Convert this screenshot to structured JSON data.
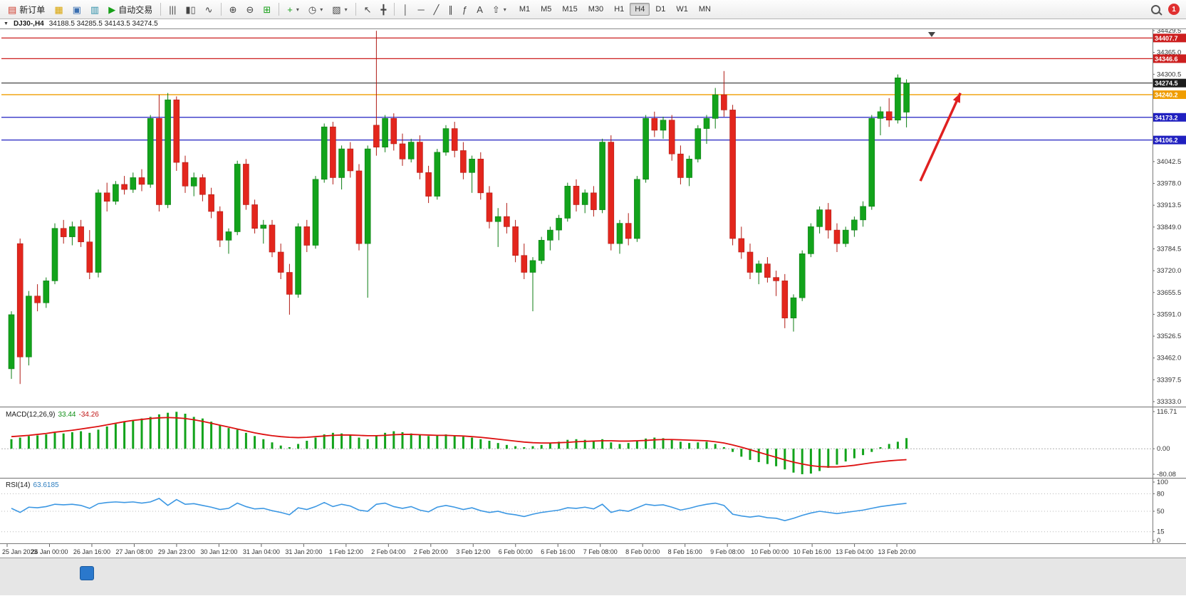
{
  "toolbar": {
    "new_order": "新订单",
    "auto_trading": "自动交易",
    "timeframes": [
      "M1",
      "M5",
      "M15",
      "M30",
      "H1",
      "H4",
      "D1",
      "W1",
      "MN"
    ],
    "active_timeframe": "H4",
    "notification_count": "1",
    "icons": {
      "new_order": "▤",
      "chart_shortcut": "▦",
      "profile": "▣",
      "market_watch": "▥",
      "play": "▶",
      "bar_chart": "|||",
      "candlestick": "▮▯",
      "line_chart": "∿",
      "zoom_in": "⊕",
      "zoom_out": "⊖",
      "tile_windows": "⊞",
      "indicators_add": "+",
      "clock": "◷",
      "template": "▧",
      "cursor": "↖",
      "crosshair": "╋",
      "vline": "│",
      "hline": "─",
      "trendline": "╱",
      "channel": "∥",
      "fibonacci": "ƒ",
      "text_tool": "A",
      "arrow_tool": "⇧",
      "caret": "▾",
      "header_marker": "▼"
    }
  },
  "chart_header": {
    "symbol": "DJ30-,H4",
    "ohlc_text": "34188.5 34285.5 34143.5 34274.5"
  },
  "panes": {
    "macd_name": "MACD(12,26,9)",
    "macd_main": "33.44",
    "macd_signal": "-34.26",
    "rsi_name": "RSI(14)",
    "rsi_value": "63.6185"
  },
  "chart_data": {
    "type": "candlestick",
    "symbol": "DJ30-",
    "timeframe": "H4",
    "current_ohlc": {
      "open": 34188.5,
      "high": 34285.5,
      "low": 34143.5,
      "close": 34274.5
    },
    "price_axis": {
      "min": 33322.5,
      "max": 34429.5,
      "labels": [
        "34429.5",
        "34365.0",
        "34300.5",
        "34236.0",
        "34171.5",
        "34107.0",
        "34042.5",
        "33978.0",
        "33913.5",
        "33849.0",
        "33784.5",
        "33720.0",
        "33655.5",
        "33591.0",
        "33526.5",
        "33462.0",
        "33397.5",
        "33333.0"
      ],
      "label_values": [
        34429.5,
        34365.0,
        34300.5,
        34236.0,
        34171.5,
        34107.0,
        34042.5,
        33978.0,
        33913.5,
        33849.0,
        33784.5,
        33720.0,
        33655.5,
        33591.0,
        33526.5,
        33462.0,
        33397.5,
        33333.0
      ]
    },
    "hlines": [
      {
        "price": 34407.7,
        "label": "34407.7",
        "color": "#cc1f1f",
        "type": "resistance"
      },
      {
        "price": 34346.6,
        "label": "34346.6",
        "color": "#cc1f1f",
        "type": "resistance"
      },
      {
        "price": 34274.5,
        "label": "34274.5",
        "color": "#1c1c1c",
        "type": "current-price"
      },
      {
        "price": 34240.2,
        "label": "34240.2",
        "color": "#f09d00",
        "type": "level"
      },
      {
        "price": 34173.2,
        "label": "34173.2",
        "color": "#2020c0",
        "type": "support"
      },
      {
        "price": 34106.2,
        "label": "34106.2",
        "color": "#2020c0",
        "type": "support"
      }
    ],
    "colors": {
      "up": "#12a31b",
      "down": "#e3261d",
      "up_stroke": "#0c7d13",
      "down_stroke": "#b01b14",
      "macd_hist": "#12a31b",
      "macd_signal": "#dd1010",
      "rsi_line": "#3b97e3",
      "arrow": "#e02020"
    },
    "candles": [
      [
        33430,
        33600,
        33400,
        33590
      ],
      [
        33800,
        33815,
        33385,
        33465
      ],
      [
        33465,
        33660,
        33440,
        33645
      ],
      [
        33645,
        33680,
        33600,
        33625
      ],
      [
        33625,
        33700,
        33610,
        33690
      ],
      [
        33690,
        33860,
        33680,
        33845
      ],
      [
        33845,
        33870,
        33800,
        33820
      ],
      [
        33820,
        33865,
        33795,
        33850
      ],
      [
        33850,
        33870,
        33790,
        33805
      ],
      [
        33805,
        33840,
        33695,
        33715
      ],
      [
        33715,
        33960,
        33700,
        33950
      ],
      [
        33950,
        33980,
        33895,
        33925
      ],
      [
        33925,
        33985,
        33915,
        33975
      ],
      [
        33975,
        34000,
        33945,
        33960
      ],
      [
        33960,
        34010,
        33950,
        33995
      ],
      [
        33995,
        34020,
        33955,
        33975
      ],
      [
        33975,
        34180,
        33965,
        34170
      ],
      [
        34170,
        34240,
        33895,
        33915
      ],
      [
        33915,
        34245,
        33905,
        34225
      ],
      [
        34225,
        34235,
        34015,
        34040
      ],
      [
        34040,
        34060,
        33950,
        33970
      ],
      [
        33970,
        34010,
        33940,
        33995
      ],
      [
        33995,
        34005,
        33925,
        33945
      ],
      [
        33945,
        33965,
        33875,
        33895
      ],
      [
        33895,
        33910,
        33790,
        33810
      ],
      [
        33810,
        33845,
        33770,
        33835
      ],
      [
        33835,
        34045,
        33825,
        34035
      ],
      [
        34035,
        34050,
        33900,
        33915
      ],
      [
        33915,
        33930,
        33830,
        33845
      ],
      [
        33845,
        33870,
        33800,
        33855
      ],
      [
        33855,
        33870,
        33760,
        33775
      ],
      [
        33775,
        33800,
        33695,
        33715
      ],
      [
        33715,
        33740,
        33590,
        33650
      ],
      [
        33650,
        33860,
        33640,
        33850
      ],
      [
        33850,
        33870,
        33775,
        33795
      ],
      [
        33795,
        34000,
        33785,
        33990
      ],
      [
        33990,
        34155,
        33980,
        34145
      ],
      [
        34145,
        34160,
        33975,
        33995
      ],
      [
        33995,
        34090,
        33960,
        34080
      ],
      [
        34080,
        34100,
        33995,
        34015
      ],
      [
        34015,
        34035,
        33780,
        33800
      ],
      [
        33800,
        34090,
        33640,
        34080
      ],
      [
        34150,
        34429,
        34060,
        34085
      ],
      [
        34085,
        34180,
        34070,
        34170
      ],
      [
        34170,
        34185,
        34075,
        34095
      ],
      [
        34095,
        34125,
        34030,
        34050
      ],
      [
        34050,
        34110,
        34040,
        34100
      ],
      [
        34100,
        34120,
        33990,
        34010
      ],
      [
        34010,
        34030,
        33920,
        33940
      ],
      [
        33940,
        34080,
        33930,
        34070
      ],
      [
        34070,
        34150,
        34060,
        34140
      ],
      [
        34140,
        34160,
        34055,
        34075
      ],
      [
        34075,
        34100,
        33990,
        34010
      ],
      [
        34010,
        34060,
        33950,
        34050
      ],
      [
        34050,
        34070,
        33930,
        33950
      ],
      [
        33950,
        33970,
        33845,
        33865
      ],
      [
        33865,
        33905,
        33790,
        33880
      ],
      [
        33880,
        33920,
        33830,
        33850
      ],
      [
        33850,
        33870,
        33745,
        33765
      ],
      [
        33765,
        33800,
        33695,
        33715
      ],
      [
        33715,
        33760,
        33600,
        33750
      ],
      [
        33750,
        33820,
        33740,
        33810
      ],
      [
        33810,
        33850,
        33780,
        33840
      ],
      [
        33840,
        33885,
        33810,
        33875
      ],
      [
        33875,
        33980,
        33865,
        33970
      ],
      [
        33970,
        33990,
        33895,
        33915
      ],
      [
        33915,
        33960,
        33890,
        33950
      ],
      [
        33950,
        33970,
        33880,
        33900
      ],
      [
        33900,
        34110,
        33890,
        34100
      ],
      [
        34100,
        34120,
        33780,
        33800
      ],
      [
        33800,
        33870,
        33770,
        33860
      ],
      [
        33860,
        33890,
        33795,
        33815
      ],
      [
        33815,
        34000,
        33805,
        33990
      ],
      [
        33990,
        34180,
        33980,
        34170
      ],
      [
        34170,
        34190,
        34115,
        34135
      ],
      [
        34135,
        34175,
        34110,
        34165
      ],
      [
        34165,
        34180,
        34045,
        34065
      ],
      [
        34065,
        34090,
        33975,
        33995
      ],
      [
        33995,
        34060,
        33970,
        34050
      ],
      [
        34050,
        34150,
        34040,
        34140
      ],
      [
        34140,
        34180,
        34095,
        34170
      ],
      [
        34170,
        34260,
        34140,
        34240
      ],
      [
        34240,
        34310,
        34175,
        34195
      ],
      [
        34195,
        34210,
        33795,
        33815
      ],
      [
        33815,
        33850,
        33755,
        33775
      ],
      [
        33775,
        33800,
        33695,
        33715
      ],
      [
        33715,
        33750,
        33680,
        33740
      ],
      [
        33740,
        33760,
        33685,
        33700
      ],
      [
        33700,
        33720,
        33645,
        33690
      ],
      [
        33690,
        33710,
        33550,
        33580
      ],
      [
        33580,
        33650,
        33540,
        33640
      ],
      [
        33640,
        33780,
        33630,
        33770
      ],
      [
        33770,
        33860,
        33760,
        33850
      ],
      [
        33850,
        33910,
        33830,
        33900
      ],
      [
        33900,
        33920,
        33815,
        33840
      ],
      [
        33840,
        33860,
        33775,
        33800
      ],
      [
        33800,
        33850,
        33790,
        33840
      ],
      [
        33840,
        33880,
        33820,
        33870
      ],
      [
        33870,
        33925,
        33850,
        33910
      ],
      [
        33910,
        34180,
        33900,
        34170
      ],
      [
        34170,
        34205,
        34120,
        34190
      ],
      [
        34190,
        34230,
        34145,
        34165
      ],
      [
        34165,
        34300,
        34155,
        34290
      ],
      [
        34188.5,
        34285.5,
        34143.5,
        34274.5
      ]
    ],
    "time_labels": [
      "25 Jan 2023",
      "26 Jan 00:00",
      "26 Jan 16:00",
      "27 Jan 08:00",
      "29 Jan 23:00",
      "30 Jan 12:00",
      "31 Jan 04:00",
      "31 Jan 20:00",
      "1 Feb 12:00",
      "2 Feb 04:00",
      "2 Feb 20:00",
      "3 Feb 12:00",
      "6 Feb 00:00",
      "6 Feb 16:00",
      "7 Feb 08:00",
      "8 Feb 00:00",
      "8 Feb 16:00",
      "9 Feb 08:00",
      "10 Feb 00:00",
      "10 Feb 16:00",
      "13 Feb 04:00",
      "13 Feb 20:00"
    ],
    "macd": {
      "name": "MACD(12,26,9)",
      "value_main": 33.44,
      "value_signal": -34.26,
      "axis_values": [
        116.71,
        0,
        -80.08
      ],
      "axis_labels": [
        "116.71",
        "0.00",
        "-80.08"
      ],
      "histogram": [
        30,
        35,
        40,
        42,
        45,
        50,
        48,
        52,
        55,
        50,
        60,
        70,
        78,
        85,
        90,
        95,
        100,
        108,
        113,
        116,
        110,
        100,
        95,
        85,
        75,
        65,
        60,
        50,
        40,
        30,
        20,
        10,
        5,
        15,
        25,
        35,
        45,
        50,
        48,
        45,
        35,
        30,
        40,
        50,
        55,
        52,
        48,
        45,
        40,
        42,
        45,
        42,
        38,
        35,
        30,
        25,
        18,
        12,
        8,
        5,
        8,
        12,
        18,
        22,
        28,
        30,
        28,
        25,
        30,
        20,
        15,
        18,
        25,
        32,
        35,
        33,
        28,
        22,
        18,
        20,
        22,
        15,
        5,
        -10,
        -25,
        -35,
        -42,
        -48,
        -55,
        -65,
        -75,
        -80,
        -78,
        -70,
        -60,
        -50,
        -40,
        -30,
        -20,
        -10,
        5,
        15,
        22,
        33.4
      ],
      "signal": [
        38,
        40,
        42,
        45,
        48,
        52,
        55,
        58,
        62,
        66,
        70,
        75,
        80,
        85,
        89,
        92,
        95,
        97,
        98,
        97,
        95,
        91,
        86,
        80,
        74,
        68,
        62,
        56,
        50,
        45,
        41,
        38,
        36,
        35,
        36,
        38,
        40,
        42,
        43,
        43,
        42,
        41,
        41,
        42,
        44,
        45,
        45,
        44,
        43,
        42,
        42,
        41,
        40,
        38,
        36,
        33,
        30,
        27,
        24,
        21,
        19,
        18,
        18,
        19,
        20,
        22,
        23,
        24,
        25,
        25,
        24,
        24,
        25,
        26,
        28,
        29,
        29,
        28,
        27,
        26,
        25,
        22,
        18,
        12,
        5,
        -3,
        -11,
        -19,
        -27,
        -35,
        -42,
        -48,
        -53,
        -56,
        -57,
        -57,
        -55,
        -52,
        -48,
        -44,
        -41,
        -38,
        -36,
        -34.3
      ]
    },
    "rsi": {
      "name": "RSI(14)",
      "value": 63.6185,
      "levels": [
        80,
        50,
        15
      ],
      "axis_values": [
        100,
        80,
        50,
        15,
        0
      ],
      "axis_labels": [
        "100",
        "80",
        "50",
        "15",
        "0"
      ],
      "values": [
        55,
        48,
        57,
        56,
        58,
        62,
        61,
        62,
        60,
        55,
        63,
        65,
        66,
        65,
        66,
        64,
        66,
        72,
        60,
        70,
        62,
        63,
        60,
        57,
        53,
        55,
        64,
        58,
        54,
        55,
        51,
        48,
        44,
        56,
        53,
        58,
        65,
        58,
        62,
        59,
        52,
        50,
        62,
        64,
        58,
        55,
        58,
        52,
        49,
        57,
        60,
        57,
        53,
        56,
        51,
        48,
        50,
        46,
        44,
        41,
        45,
        48,
        50,
        52,
        56,
        55,
        57,
        54,
        62,
        48,
        52,
        50,
        56,
        62,
        60,
        61,
        57,
        52,
        55,
        59,
        62,
        64,
        60,
        45,
        42,
        40,
        42,
        39,
        38,
        34,
        38,
        43,
        47,
        50,
        48,
        46,
        48,
        50,
        52,
        55,
        58,
        60,
        62,
        63.6
      ]
    },
    "annotation_arrow": {
      "from_bar": 104.6,
      "from_price": 33985,
      "to_bar": 109.2,
      "to_price": 34245,
      "color": "#e02020"
    }
  }
}
